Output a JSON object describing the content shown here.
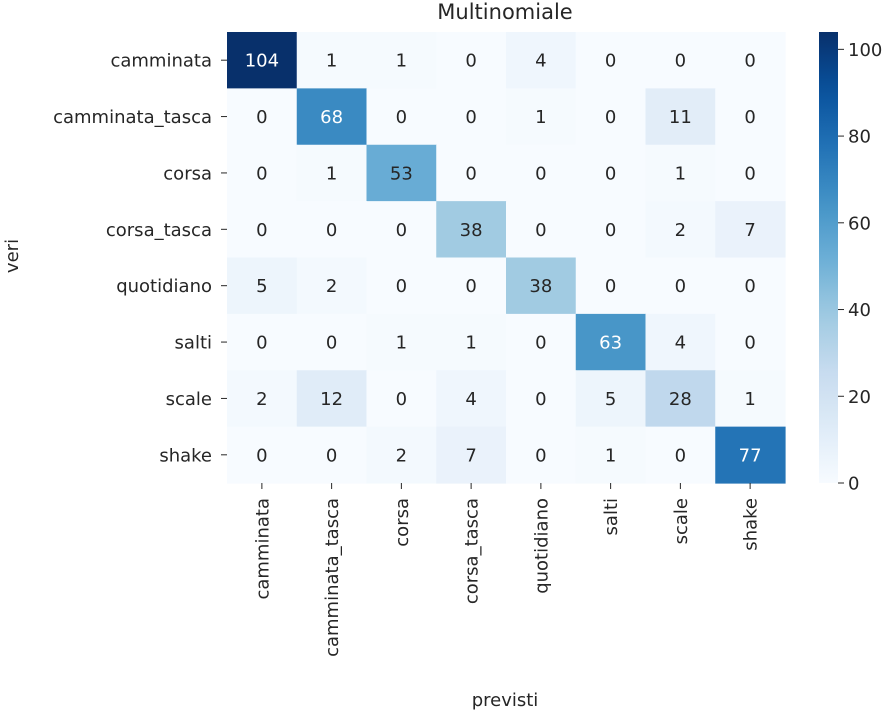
{
  "chart_data": {
    "type": "heatmap",
    "title": "Multinomiale",
    "xlabel": "previsti",
    "ylabel": "veri",
    "x_categories": [
      "camminata",
      "camminata_tasca",
      "corsa",
      "corsa_tasca",
      "quotidiano",
      "salti",
      "scale",
      "shake"
    ],
    "y_categories": [
      "camminata",
      "camminata_tasca",
      "corsa",
      "corsa_tasca",
      "quotidiano",
      "salti",
      "scale",
      "shake"
    ],
    "matrix": [
      [
        104,
        1,
        1,
        0,
        4,
        0,
        0,
        0
      ],
      [
        0,
        68,
        0,
        0,
        1,
        0,
        11,
        0
      ],
      [
        0,
        1,
        53,
        0,
        0,
        0,
        1,
        0
      ],
      [
        0,
        0,
        0,
        38,
        0,
        0,
        2,
        7
      ],
      [
        5,
        2,
        0,
        0,
        38,
        0,
        0,
        0
      ],
      [
        0,
        0,
        1,
        1,
        0,
        63,
        4,
        0
      ],
      [
        2,
        12,
        0,
        4,
        0,
        5,
        28,
        1
      ],
      [
        0,
        0,
        2,
        7,
        0,
        1,
        0,
        77
      ]
    ],
    "colormap": "Blues",
    "vmin": 0,
    "vmax": 104,
    "colorbar_ticks": [
      0,
      20,
      40,
      60,
      80,
      100
    ],
    "annotated": true,
    "grid": false
  }
}
